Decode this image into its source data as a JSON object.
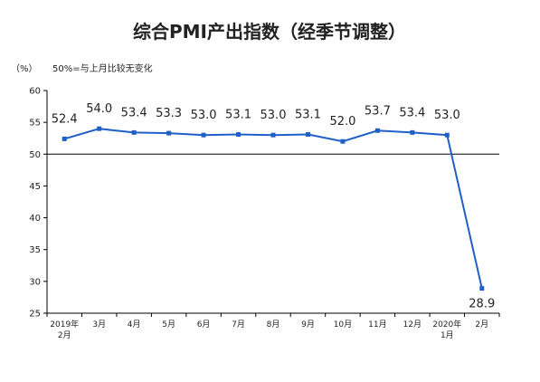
{
  "chart_data": {
    "type": "line",
    "title": "综合PMI产出指数（经季节调整）",
    "unit": "（%）",
    "reference_note": "50%=与上月比较无变化",
    "reference_value": 50,
    "ylim": [
      25,
      60
    ],
    "yticks": [
      25,
      30,
      35,
      40,
      45,
      50,
      55,
      60
    ],
    "categories": [
      [
        "2019年",
        "2月"
      ],
      [
        "3月"
      ],
      [
        "4月"
      ],
      [
        "5月"
      ],
      [
        "6月"
      ],
      [
        "7月"
      ],
      [
        "8月"
      ],
      [
        "9月"
      ],
      [
        "10月"
      ],
      [
        "11月"
      ],
      [
        "12月"
      ],
      [
        "2020年",
        "1月"
      ],
      [
        "2月"
      ]
    ],
    "series": [
      {
        "values": [
          52.4,
          54.0,
          53.4,
          53.3,
          53.0,
          53.1,
          53.0,
          53.1,
          52.0,
          53.7,
          53.4,
          53.0,
          28.9
        ],
        "labels": [
          "52.4",
          "54.0",
          "53.4",
          "53.3",
          "53.0",
          "53.1",
          "53.0",
          "53.1",
          "52.0",
          "53.7",
          "53.4",
          "53.0",
          "28.9"
        ],
        "color": "#1f5fc8"
      }
    ],
    "grid": false
  }
}
